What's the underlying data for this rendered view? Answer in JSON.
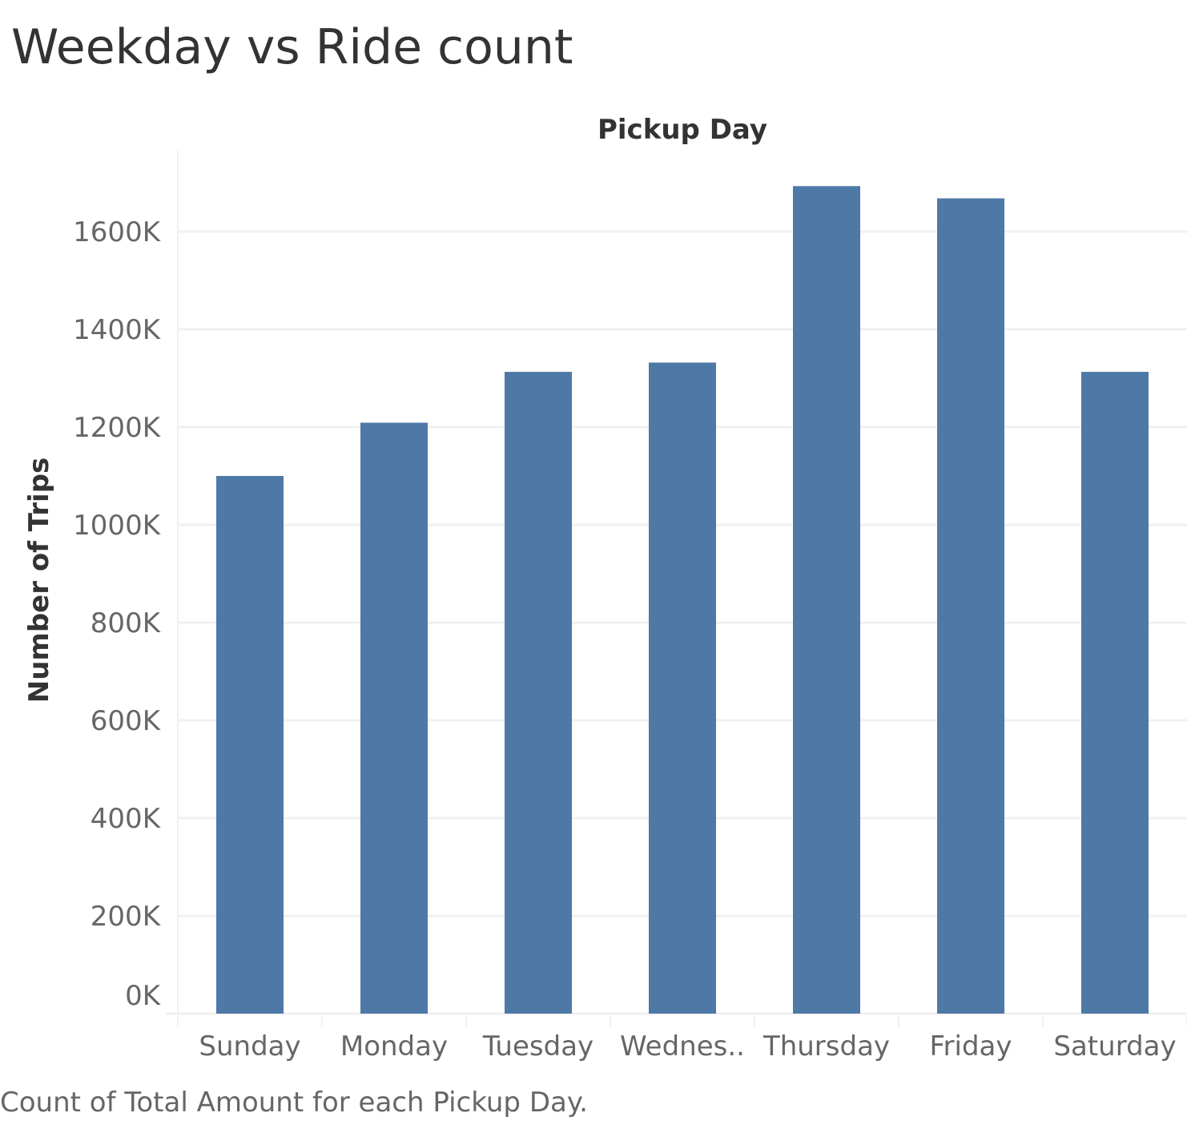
{
  "title": "Weekday vs Ride count",
  "caption": "Count of Total Amount for each Pickup Day.",
  "colors": {
    "bar": "#4e79a7",
    "gridline": "#f0f0f0",
    "tick_text": "#666666",
    "title_text": "#333333"
  },
  "chart_data": {
    "type": "bar",
    "title": "Weekday vs Ride count",
    "xlabel": "Pickup Day",
    "ylabel": "Number of Trips",
    "categories": [
      "Sunday",
      "Monday",
      "Tuesday",
      "Wednes..",
      "Thursday",
      "Friday",
      "Saturday"
    ],
    "values": [
      1100000,
      1209000,
      1313000,
      1332000,
      1693000,
      1668000,
      1313000
    ],
    "ylim": [
      0,
      1700000
    ],
    "yticks": [
      0,
      200000,
      400000,
      600000,
      800000,
      1000000,
      1200000,
      1400000,
      1600000
    ],
    "ytick_labels": [
      "0K",
      "200K",
      "400K",
      "600K",
      "800K",
      "1000K",
      "1200K",
      "1400K",
      "1600K"
    ],
    "grid": true,
    "legend": "none",
    "axis_title_position": "top"
  }
}
